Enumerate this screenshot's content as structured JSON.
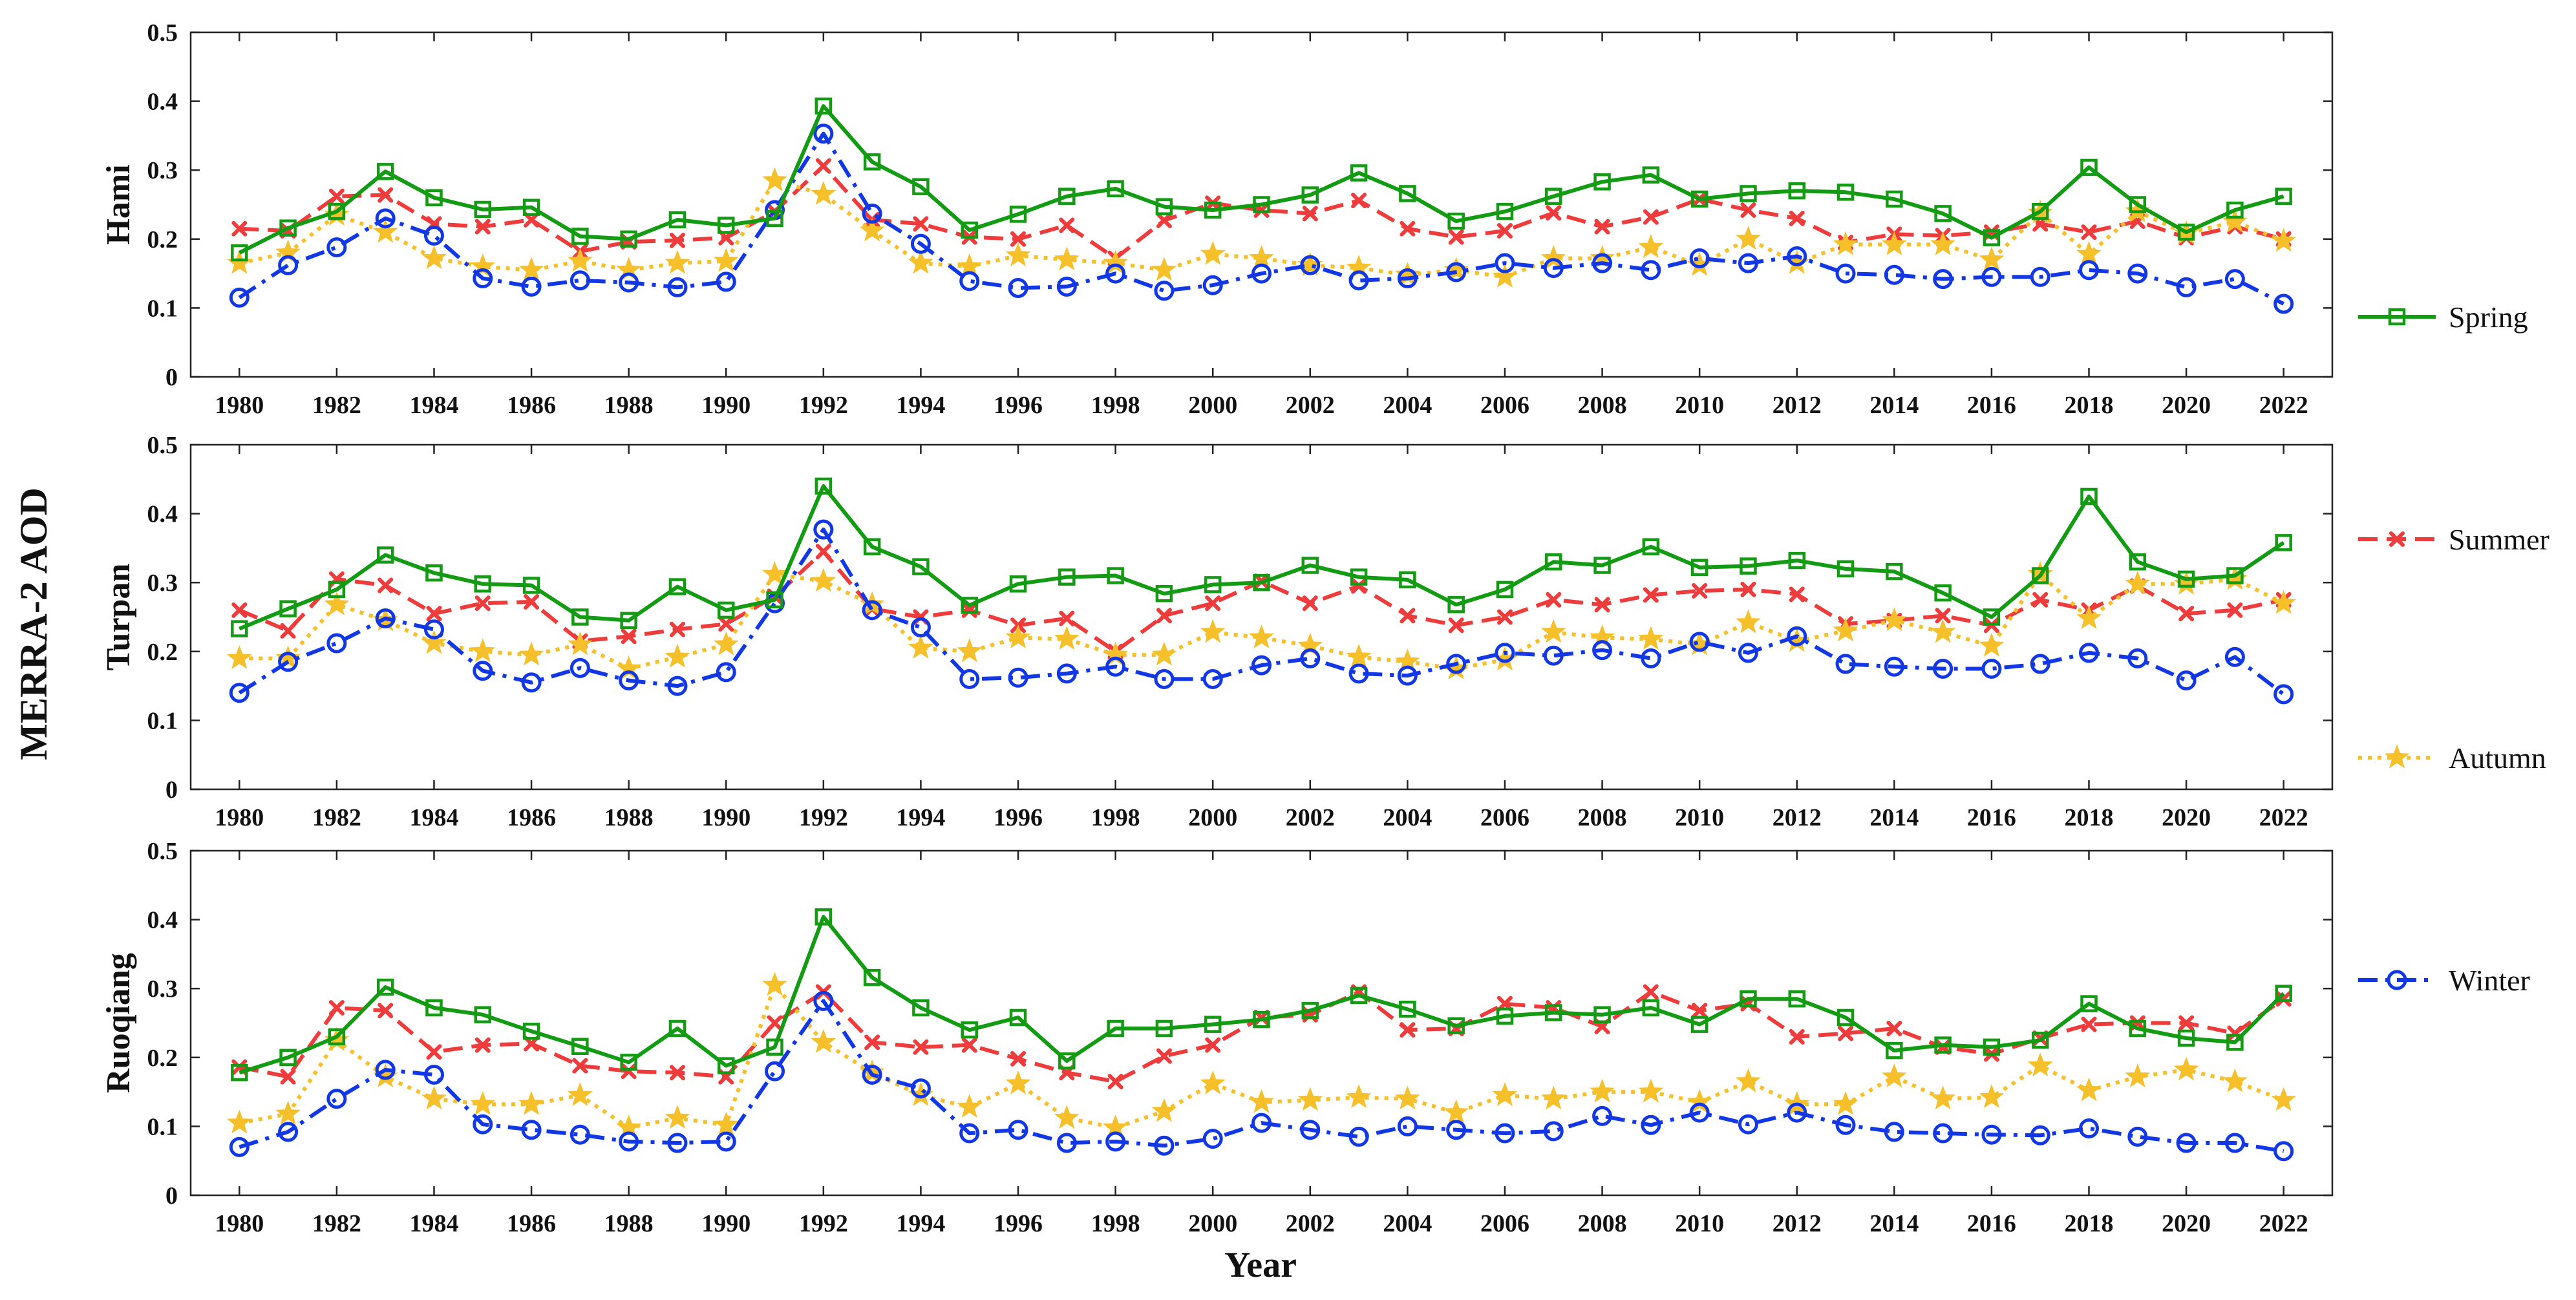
{
  "figure": {
    "ylabel": "MERRA-2 AOD",
    "xlabel": "Year"
  },
  "legend": [
    {
      "name": "Spring",
      "color": "#139b13",
      "marker": "square",
      "dash": "solid"
    },
    {
      "name": "Summer",
      "color": "#ee3b3b",
      "marker": "x",
      "dash": "dashed"
    },
    {
      "name": "Autumn",
      "color": "#f5c02a",
      "marker": "star",
      "dash": "dotted"
    },
    {
      "name": "Winter",
      "color": "#1238e6",
      "marker": "circle",
      "dash": "dashdot"
    }
  ],
  "chart_data": [
    {
      "type": "line",
      "title": "",
      "ylabel": "Hami",
      "xlabel": "",
      "ylim": [
        0,
        0.5
      ],
      "yticks": [
        "0",
        "0.1",
        "0.2",
        "0.3",
        "0.4",
        "0.5"
      ],
      "xticks": [
        "1980",
        "1982",
        "1984",
        "1986",
        "1988",
        "1990",
        "1992",
        "1994",
        "1996",
        "1998",
        "2000",
        "2002",
        "2004",
        "2006",
        "2008",
        "2010",
        "2012",
        "2014",
        "2016",
        "2018",
        "2020",
        "2022"
      ],
      "x": [
        1980,
        1981,
        1982,
        1983,
        1984,
        1985,
        1986,
        1987,
        1988,
        1989,
        1990,
        1991,
        1992,
        1993,
        1994,
        1995,
        1996,
        1997,
        1998,
        1999,
        2000,
        2001,
        2002,
        2003,
        2004,
        2005,
        2006,
        2007,
        2008,
        2009,
        2010,
        2011,
        2012,
        2013,
        2014,
        2015,
        2016,
        2017,
        2018,
        2019,
        2020,
        2021,
        2022
      ],
      "series": [
        {
          "name": "Spring",
          "values": [
            0.18,
            0.216,
            0.24,
            0.298,
            0.26,
            0.243,
            0.246,
            0.204,
            0.2,
            0.228,
            0.22,
            0.23,
            0.393,
            0.312,
            0.276,
            0.213,
            0.236,
            0.262,
            0.273,
            0.247,
            0.242,
            0.25,
            0.264,
            0.296,
            0.266,
            0.226,
            0.24,
            0.262,
            0.283,
            0.293,
            0.258,
            0.266,
            0.27,
            0.268,
            0.258,
            0.237,
            0.202,
            0.24,
            0.304,
            0.25,
            0.21,
            0.242,
            0.262
          ]
        },
        {
          "name": "Summer",
          "values": [
            0.215,
            0.212,
            0.262,
            0.264,
            0.222,
            0.218,
            0.228,
            0.182,
            0.196,
            0.198,
            0.202,
            0.24,
            0.306,
            0.228,
            0.222,
            0.203,
            0.2,
            0.22,
            0.172,
            0.227,
            0.252,
            0.242,
            0.237,
            0.256,
            0.215,
            0.203,
            0.212,
            0.238,
            0.218,
            0.232,
            0.258,
            0.242,
            0.23,
            0.195,
            0.207,
            0.205,
            0.21,
            0.222,
            0.21,
            0.226,
            0.202,
            0.218,
            0.2
          ]
        },
        {
          "name": "Autumn",
          "values": [
            0.165,
            0.18,
            0.235,
            0.21,
            0.172,
            0.16,
            0.155,
            0.168,
            0.155,
            0.165,
            0.168,
            0.285,
            0.265,
            0.212,
            0.165,
            0.16,
            0.176,
            0.17,
            0.165,
            0.155,
            0.178,
            0.172,
            0.162,
            0.158,
            0.148,
            0.155,
            0.145,
            0.172,
            0.172,
            0.188,
            0.162,
            0.2,
            0.165,
            0.192,
            0.192,
            0.192,
            0.17,
            0.238,
            0.178,
            0.24,
            0.208,
            0.225,
            0.197
          ]
        },
        {
          "name": "Winter",
          "values": [
            0.115,
            0.162,
            0.188,
            0.23,
            0.205,
            0.143,
            0.131,
            0.14,
            0.137,
            0.13,
            0.138,
            0.242,
            0.353,
            0.237,
            0.193,
            0.139,
            0.129,
            0.131,
            0.15,
            0.125,
            0.133,
            0.15,
            0.162,
            0.14,
            0.143,
            0.152,
            0.165,
            0.158,
            0.165,
            0.155,
            0.172,
            0.165,
            0.175,
            0.15,
            0.148,
            0.142,
            0.145,
            0.145,
            0.155,
            0.15,
            0.13,
            0.142,
            0.106
          ]
        }
      ]
    },
    {
      "type": "line",
      "title": "",
      "ylabel": "Turpan",
      "xlabel": "",
      "ylim": [
        0,
        0.5
      ],
      "yticks": [
        "0",
        "0.1",
        "0.2",
        "0.3",
        "0.4",
        "0.5"
      ],
      "xticks": [
        "1980",
        "1982",
        "1984",
        "1986",
        "1988",
        "1990",
        "1992",
        "1994",
        "1996",
        "1998",
        "2000",
        "2002",
        "2004",
        "2006",
        "2008",
        "2010",
        "2012",
        "2014",
        "2016",
        "2018",
        "2020",
        "2022"
      ],
      "x": [
        1980,
        1981,
        1982,
        1983,
        1984,
        1985,
        1986,
        1987,
        1988,
        1989,
        1990,
        1991,
        1992,
        1993,
        1994,
        1995,
        1996,
        1997,
        1998,
        1999,
        2000,
        2001,
        2002,
        2003,
        2004,
        2005,
        2006,
        2007,
        2008,
        2009,
        2010,
        2011,
        2012,
        2013,
        2014,
        2015,
        2016,
        2017,
        2018,
        2019,
        2020,
        2021,
        2022
      ],
      "series": [
        {
          "name": "Spring",
          "values": [
            0.233,
            0.262,
            0.29,
            0.34,
            0.314,
            0.298,
            0.296,
            0.25,
            0.245,
            0.294,
            0.26,
            0.275,
            0.44,
            0.352,
            0.323,
            0.267,
            0.298,
            0.308,
            0.31,
            0.284,
            0.297,
            0.3,
            0.325,
            0.308,
            0.304,
            0.268,
            0.29,
            0.33,
            0.325,
            0.352,
            0.322,
            0.324,
            0.332,
            0.32,
            0.316,
            0.285,
            0.25,
            0.31,
            0.425,
            0.33,
            0.305,
            0.31,
            0.358
          ]
        },
        {
          "name": "Summer",
          "values": [
            0.26,
            0.23,
            0.305,
            0.296,
            0.255,
            0.27,
            0.272,
            0.215,
            0.222,
            0.232,
            0.24,
            0.28,
            0.345,
            0.262,
            0.25,
            0.26,
            0.238,
            0.248,
            0.2,
            0.252,
            0.27,
            0.302,
            0.27,
            0.295,
            0.252,
            0.238,
            0.25,
            0.275,
            0.268,
            0.282,
            0.288,
            0.29,
            0.283,
            0.24,
            0.245,
            0.252,
            0.238,
            0.275,
            0.26,
            0.295,
            0.255,
            0.26,
            0.275
          ]
        },
        {
          "name": "Autumn",
          "values": [
            0.19,
            0.19,
            0.268,
            0.245,
            0.212,
            0.2,
            0.195,
            0.21,
            0.175,
            0.192,
            0.21,
            0.312,
            0.302,
            0.268,
            0.205,
            0.2,
            0.22,
            0.218,
            0.195,
            0.195,
            0.228,
            0.22,
            0.208,
            0.192,
            0.185,
            0.175,
            0.188,
            0.228,
            0.22,
            0.218,
            0.21,
            0.242,
            0.215,
            0.23,
            0.245,
            0.228,
            0.208,
            0.312,
            0.248,
            0.298,
            0.298,
            0.305,
            0.27
          ]
        },
        {
          "name": "Winter",
          "values": [
            0.14,
            0.185,
            0.212,
            0.248,
            0.232,
            0.172,
            0.155,
            0.176,
            0.158,
            0.15,
            0.17,
            0.27,
            0.377,
            0.26,
            0.235,
            0.16,
            0.162,
            0.168,
            0.178,
            0.16,
            0.16,
            0.18,
            0.19,
            0.168,
            0.165,
            0.182,
            0.198,
            0.194,
            0.202,
            0.19,
            0.214,
            0.198,
            0.222,
            0.182,
            0.178,
            0.175,
            0.175,
            0.182,
            0.198,
            0.19,
            0.158,
            0.192,
            0.138
          ]
        }
      ]
    },
    {
      "type": "line",
      "title": "",
      "ylabel": "Ruoqiang",
      "xlabel": "Year",
      "ylim": [
        0,
        0.5
      ],
      "yticks": [
        "0",
        "0.1",
        "0.2",
        "0.3",
        "0.4",
        "0.5"
      ],
      "xticks": [
        "1980",
        "1982",
        "1984",
        "1986",
        "1988",
        "1990",
        "1992",
        "1994",
        "1996",
        "1998",
        "2000",
        "2002",
        "2004",
        "2006",
        "2008",
        "2010",
        "2012",
        "2014",
        "2016",
        "2018",
        "2020",
        "2022"
      ],
      "x": [
        1980,
        1981,
        1982,
        1983,
        1984,
        1985,
        1986,
        1987,
        1988,
        1989,
        1990,
        1991,
        1992,
        1993,
        1994,
        1995,
        1996,
        1997,
        1998,
        1999,
        2000,
        2001,
        2002,
        2003,
        2004,
        2005,
        2006,
        2007,
        2008,
        2009,
        2010,
        2011,
        2012,
        2013,
        2014,
        2015,
        2016,
        2017,
        2018,
        2019,
        2020,
        2021,
        2022
      ],
      "series": [
        {
          "name": "Spring",
          "values": [
            0.178,
            0.2,
            0.23,
            0.302,
            0.272,
            0.262,
            0.238,
            0.216,
            0.193,
            0.242,
            0.188,
            0.215,
            0.404,
            0.316,
            0.272,
            0.24,
            0.258,
            0.195,
            0.242,
            0.242,
            0.248,
            0.255,
            0.268,
            0.29,
            0.27,
            0.246,
            0.26,
            0.265,
            0.262,
            0.272,
            0.248,
            0.285,
            0.285,
            0.258,
            0.21,
            0.218,
            0.215,
            0.225,
            0.278,
            0.242,
            0.228,
            0.222,
            0.293
          ]
        },
        {
          "name": "Summer",
          "values": [
            0.186,
            0.172,
            0.272,
            0.268,
            0.208,
            0.218,
            0.22,
            0.188,
            0.18,
            0.178,
            0.172,
            0.25,
            0.295,
            0.222,
            0.215,
            0.218,
            0.198,
            0.178,
            0.165,
            0.202,
            0.218,
            0.258,
            0.262,
            0.295,
            0.24,
            0.242,
            0.278,
            0.272,
            0.245,
            0.295,
            0.268,
            0.278,
            0.23,
            0.235,
            0.242,
            0.215,
            0.205,
            0.228,
            0.248,
            0.25,
            0.25,
            0.235,
            0.285
          ]
        },
        {
          "name": "Autumn",
          "values": [
            0.105,
            0.118,
            0.225,
            0.172,
            0.14,
            0.132,
            0.132,
            0.145,
            0.098,
            0.112,
            0.102,
            0.305,
            0.222,
            0.178,
            0.145,
            0.128,
            0.162,
            0.112,
            0.098,
            0.122,
            0.162,
            0.135,
            0.138,
            0.142,
            0.14,
            0.12,
            0.145,
            0.14,
            0.15,
            0.15,
            0.135,
            0.165,
            0.132,
            0.132,
            0.172,
            0.14,
            0.142,
            0.188,
            0.152,
            0.172,
            0.182,
            0.165,
            0.138
          ]
        },
        {
          "name": "Winter",
          "values": [
            0.07,
            0.092,
            0.14,
            0.182,
            0.175,
            0.103,
            0.095,
            0.088,
            0.078,
            0.076,
            0.078,
            0.18,
            0.282,
            0.175,
            0.155,
            0.09,
            0.095,
            0.076,
            0.078,
            0.072,
            0.082,
            0.105,
            0.095,
            0.085,
            0.1,
            0.095,
            0.09,
            0.093,
            0.115,
            0.102,
            0.12,
            0.103,
            0.12,
            0.102,
            0.092,
            0.09,
            0.088,
            0.087,
            0.097,
            0.085,
            0.076,
            0.076,
            0.064
          ]
        }
      ]
    }
  ]
}
